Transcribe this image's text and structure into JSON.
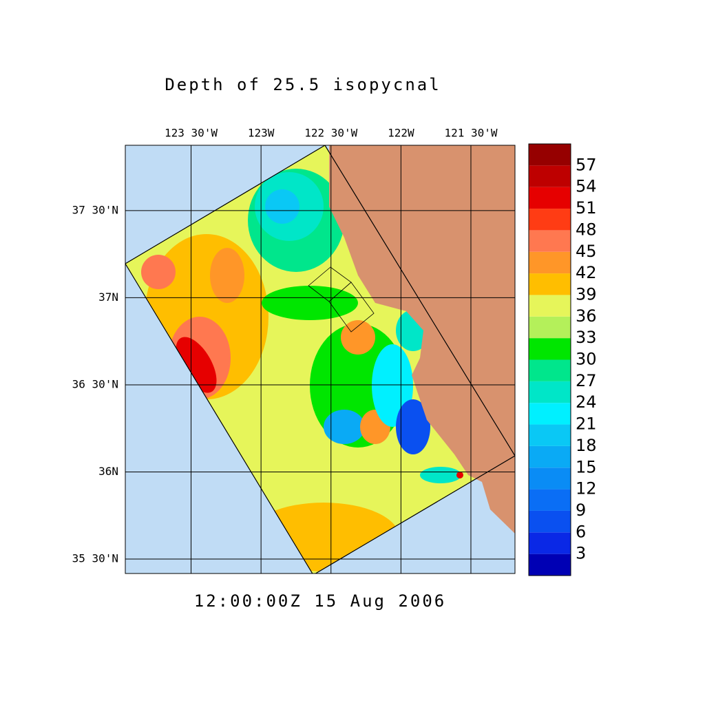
{
  "map": {
    "title": "Depth of 25.5 isopycnal",
    "time_label": "12:00:00Z  15 Aug 2006",
    "lonlim": [
      -123.97,
      -121.185
    ],
    "latlim": [
      35.417,
      37.875
    ],
    "lonticks": [
      {
        "value": -123.5,
        "label": "123 30'W"
      },
      {
        "value": -123,
        "label": "123W"
      },
      {
        "value": -122.5,
        "label": "122 30'W"
      },
      {
        "value": -122,
        "label": "122W"
      },
      {
        "value": -121.5,
        "label": "121 30'W"
      }
    ],
    "latticks": [
      {
        "value": 35.5,
        "label": "35 30'N"
      },
      {
        "value": 36,
        "label": "36N"
      },
      {
        "value": 36.5,
        "label": "36 30'N"
      },
      {
        "value": 37,
        "label": "37N"
      },
      {
        "value": 37.5,
        "label": "37 30'N"
      }
    ],
    "colorbar": {
      "levels": [
        0,
        3,
        6,
        9,
        12,
        15,
        18,
        21,
        24,
        27,
        30,
        33,
        36,
        39,
        42,
        45,
        48,
        51,
        54,
        57,
        60
      ],
      "colors": [
        "#0000b4",
        "#0a28e6",
        "#0a50f0",
        "#0a6ef5",
        "#0a8cf5",
        "#0aaaf5",
        "#0ac8f5",
        "#00f0ff",
        "#00e6c8",
        "#00e68c",
        "#00e600",
        "#b4f05a",
        "#e6f55a",
        "#ffbe00",
        "#ff9628",
        "#ff7850",
        "#ff3c14",
        "#e60000",
        "#be0000",
        "#960000"
      ]
    }
  }
}
